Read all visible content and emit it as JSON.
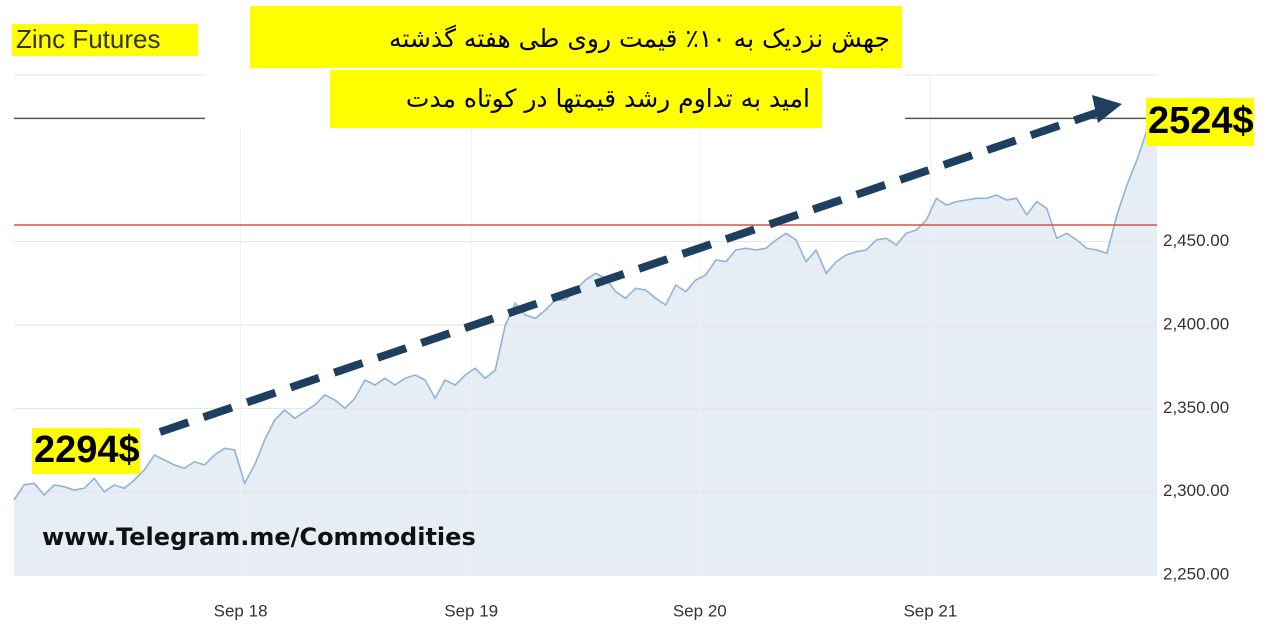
{
  "chart_data": {
    "type": "area",
    "title": "Zinc Futures",
    "series": [
      {
        "name": "Zinc Futures",
        "color": "#8fb3d9",
        "fill": "#e6edf5",
        "values": [
          2295,
          2304,
          2305,
          2298,
          2304,
          2303,
          2301,
          2302,
          2308,
          2300,
          2304,
          2302,
          2307,
          2313,
          2322,
          2319,
          2316,
          2314,
          2318,
          2316,
          2322,
          2326,
          2325,
          2305,
          2316,
          2331,
          2343,
          2349,
          2344,
          2348,
          2352,
          2358,
          2355,
          2350,
          2356,
          2367,
          2364,
          2368,
          2364,
          2368,
          2370,
          2367,
          2356,
          2367,
          2364,
          2370,
          2374,
          2368,
          2373,
          2400,
          2413,
          2406,
          2404,
          2409,
          2415,
          2415,
          2421,
          2427,
          2431,
          2428,
          2420,
          2416,
          2422,
          2421,
          2416,
          2412,
          2424,
          2420,
          2427,
          2430,
          2439,
          2438,
          2445,
          2446,
          2445,
          2446,
          2451,
          2455,
          2451,
          2438,
          2445,
          2431,
          2438,
          2442,
          2444,
          2445,
          2451,
          2452,
          2448,
          2455,
          2457,
          2463,
          2476,
          2472,
          2474,
          2475,
          2476,
          2476,
          2478,
          2475,
          2476,
          2466,
          2474,
          2470,
          2452,
          2455,
          2451,
          2446,
          2445,
          2443,
          2466,
          2484,
          2499,
          2517,
          2525
        ]
      }
    ],
    "xlim": [
      0,
      114
    ],
    "xticks": [
      {
        "value": 22.6,
        "label": "Sep 18"
      },
      {
        "value": 45.6,
        "label": "Sep 19"
      },
      {
        "value": 68.4,
        "label": "Sep 20"
      },
      {
        "value": 91.4,
        "label": "Sep 21"
      }
    ],
    "ylim": [
      2250,
      2550
    ],
    "yticks": [
      {
        "value": 2250,
        "label": "2,250.00"
      },
      {
        "value": 2300,
        "label": "2,300.00"
      },
      {
        "value": 2350,
        "label": "2,350.00"
      },
      {
        "value": 2400,
        "label": "2,400.00"
      },
      {
        "value": 2450,
        "label": "2,450.00"
      }
    ],
    "reference_lines": [
      {
        "value": 2524,
        "color": "#555555"
      },
      {
        "value": 2460,
        "color": "#d9534f"
      }
    ],
    "grid": true,
    "annotations": {
      "headline": [
        "جهش نزدیک به ۱۰٪ قیمت روی طی هفته گذشته",
        "امید به تداوم رشد قیمتها در کوتاه مدت"
      ],
      "start_label": "2294$",
      "end_label": "2524$",
      "watermark": "www.Telegram.me/Commodities"
    }
  }
}
